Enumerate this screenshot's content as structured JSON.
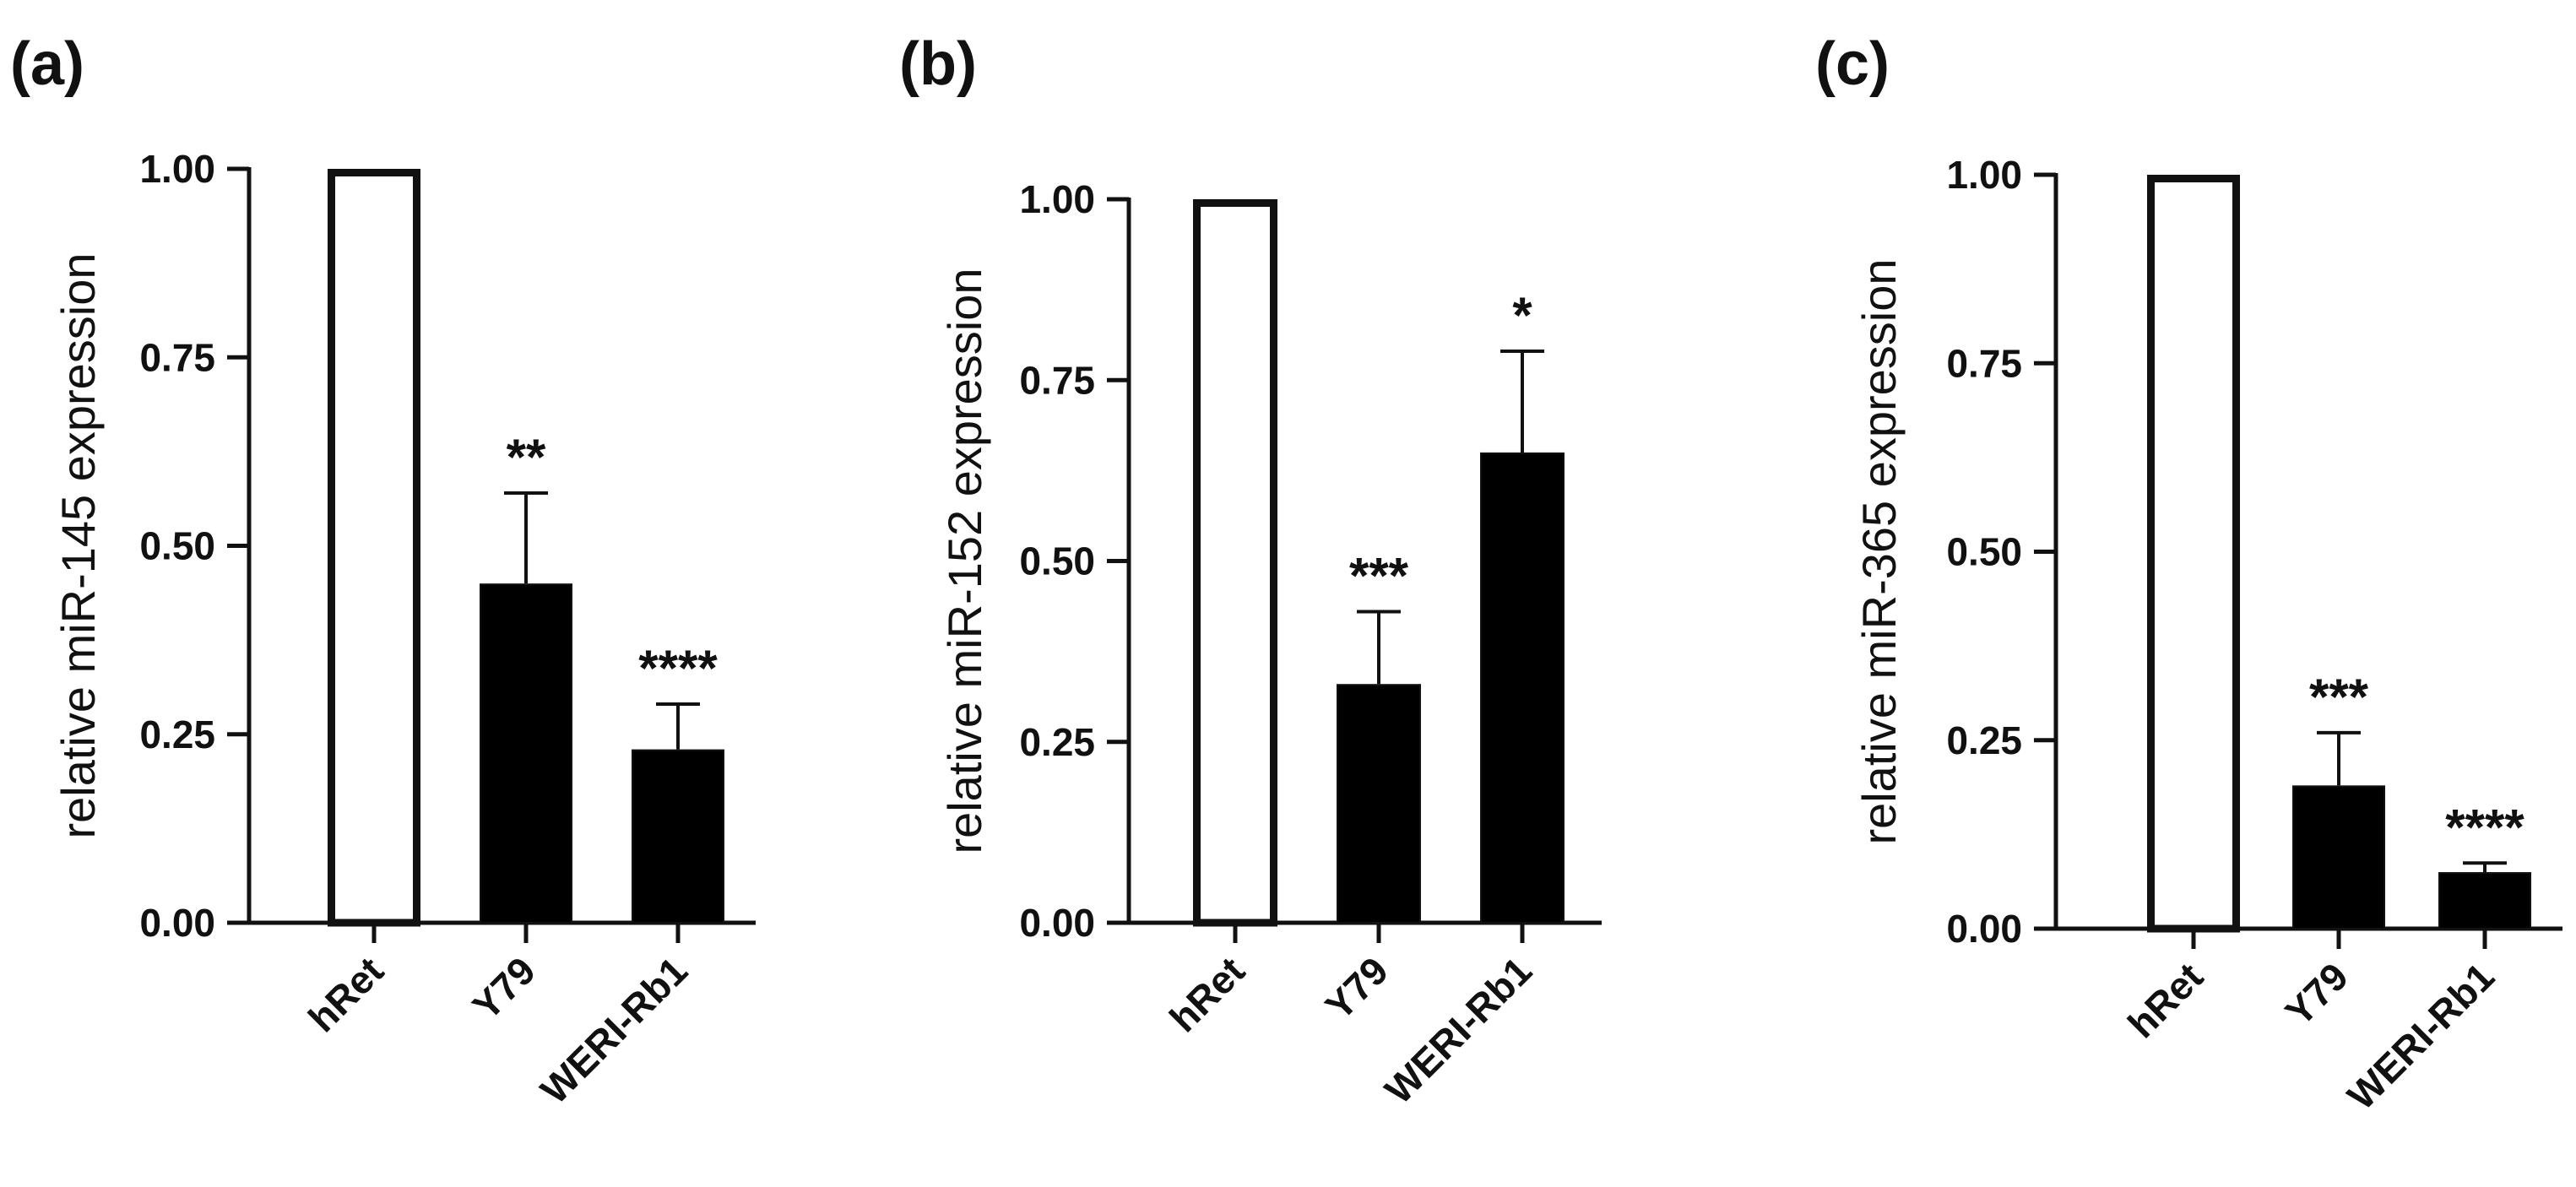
{
  "colors": {
    "background": "#ffffff",
    "ink": "#111111",
    "control_fill": "#ffffff",
    "sample_fill": "#000000"
  },
  "chart_data": [
    {
      "panel_label": "(a)",
      "type": "bar",
      "categories": [
        "hRet",
        "Y79",
        "WERI-Rb1"
      ],
      "values": [
        1.0,
        0.45,
        0.23
      ],
      "errors": [
        0.0,
        0.12,
        0.06
      ],
      "significance": [
        "",
        "**",
        "****"
      ],
      "fills": [
        "white",
        "black",
        "black"
      ],
      "ylabel": "relative miR-145 expression",
      "xlabel": "",
      "ylim": [
        0,
        1.0
      ],
      "yticks": [
        0.0,
        0.25,
        0.5,
        0.75,
        1.0
      ],
      "ytick_labels": [
        "0.00",
        "0.25",
        "0.50",
        "0.75",
        "1.00"
      ],
      "grid": false,
      "legend": "none"
    },
    {
      "panel_label": "(b)",
      "type": "bar",
      "categories": [
        "hRet",
        "Y79",
        "WERI-Rb1"
      ],
      "values": [
        1.0,
        0.33,
        0.65
      ],
      "errors": [
        0.0,
        0.1,
        0.14
      ],
      "significance": [
        "",
        "***",
        "*"
      ],
      "fills": [
        "white",
        "black",
        "black"
      ],
      "ylabel": "relative miR-152 expression",
      "xlabel": "",
      "ylim": [
        0,
        1.0
      ],
      "yticks": [
        0.0,
        0.25,
        0.5,
        0.75,
        1.0
      ],
      "ytick_labels": [
        "0.00",
        "0.25",
        "0.50",
        "0.75",
        "1.00"
      ],
      "grid": false,
      "legend": "none"
    },
    {
      "panel_label": "(c)",
      "type": "bar",
      "categories": [
        "hRet",
        "Y79",
        "WERI-Rb1"
      ],
      "values": [
        1.0,
        0.19,
        0.075
      ],
      "errors": [
        0.0,
        0.07,
        0.012
      ],
      "significance": [
        "",
        "***",
        "****"
      ],
      "fills": [
        "white",
        "black",
        "black"
      ],
      "ylabel": "relative miR-365 expression",
      "xlabel": "",
      "ylim": [
        0,
        1.0
      ],
      "yticks": [
        0.0,
        0.25,
        0.5,
        0.75,
        1.0
      ],
      "ytick_labels": [
        "0.00",
        "0.25",
        "0.50",
        "0.75",
        "1.00"
      ],
      "grid": false,
      "legend": "none"
    }
  ]
}
